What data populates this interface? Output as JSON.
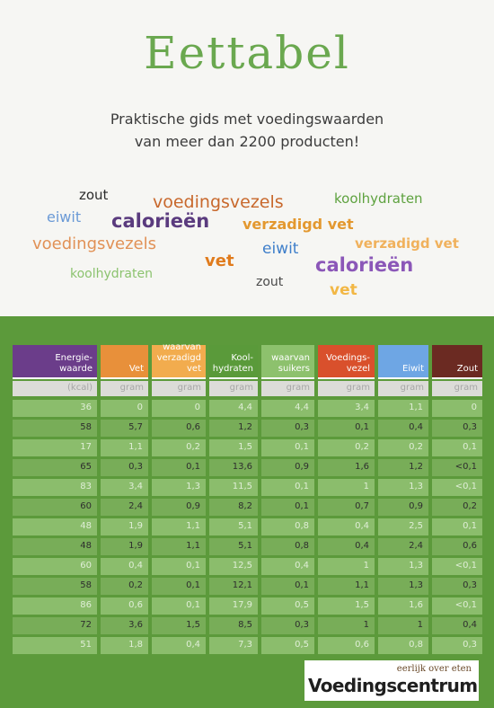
{
  "title": "Eettabel",
  "subtitle": {
    "line1": "Praktische gids met voedingswaarden",
    "line2": "van meer dan 2200 producten!"
  },
  "word_cloud": [
    {
      "text": "zout",
      "color": "#2b2b2b"
    },
    {
      "text": "voedingsvezels",
      "color": "#c8682c"
    },
    {
      "text": "koolhydraten",
      "color": "#5ea23f"
    },
    {
      "text": "eiwit",
      "color": "#6b9ad6"
    },
    {
      "text": "calorieën",
      "color": "#5a3b7e"
    },
    {
      "text": "verzadigd vet",
      "color": "#e3982f"
    },
    {
      "text": "voedingsvezels",
      "color": "#e19156"
    },
    {
      "text": "eiwit",
      "color": "#3f7fca"
    },
    {
      "text": "verzadigd vet",
      "color": "#f0b15c"
    },
    {
      "text": "vet",
      "color": "#e07b1c"
    },
    {
      "text": "calorieën",
      "color": "#8b57b8"
    },
    {
      "text": "koolhydraten",
      "color": "#8cc36f"
    },
    {
      "text": "zout",
      "color": "#4a4a4a"
    },
    {
      "text": "vet",
      "color": "#f2b744"
    }
  ],
  "table": {
    "columns": [
      {
        "label_lines": [
          "Energie-",
          "waarde"
        ],
        "unit": "(kcal)",
        "color": "#6b3d8a"
      },
      {
        "label_lines": [
          "Vet"
        ],
        "unit": "gram",
        "color": "#e8903a"
      },
      {
        "label_lines": [
          "waarvan",
          "verzadigd",
          "vet"
        ],
        "unit": "gram",
        "color": "#f2ac4e"
      },
      {
        "label_lines": [
          "Kool-",
          "hydraten"
        ],
        "unit": "gram",
        "color": "#5a9a3a"
      },
      {
        "label_lines": [
          "waarvan",
          "suikers"
        ],
        "unit": "gram",
        "color": "#8dc16d"
      },
      {
        "label_lines": [
          "Voedings-",
          "vezel"
        ],
        "unit": "gram",
        "color": "#d9502c"
      },
      {
        "label_lines": [
          "Eiwit"
        ],
        "unit": "gram",
        "color": "#6ea6e4"
      },
      {
        "label_lines": [
          "Zout"
        ],
        "unit": "gram",
        "color": "#6b2a22"
      }
    ],
    "rows": [
      [
        "36",
        "0",
        "0",
        "4,4",
        "4,4",
        "3,4",
        "1,1",
        "0"
      ],
      [
        "58",
        "5,7",
        "0,6",
        "1,2",
        "0,3",
        "0,1",
        "0,4",
        "0,3"
      ],
      [
        "17",
        "1,1",
        "0,2",
        "1,5",
        "0,1",
        "0,2",
        "0,2",
        "0,1"
      ],
      [
        "65",
        "0,3",
        "0,1",
        "13,6",
        "0,9",
        "1,6",
        "1,2",
        "<0,1"
      ],
      [
        "83",
        "3,4",
        "1,3",
        "11,5",
        "0,1",
        "1",
        "1,3",
        "<0,1"
      ],
      [
        "60",
        "2,4",
        "0,9",
        "8,2",
        "0,1",
        "0,7",
        "0,9",
        "0,2"
      ],
      [
        "48",
        "1,9",
        "1,1",
        "5,1",
        "0,8",
        "0,4",
        "2,5",
        "0,1"
      ],
      [
        "48",
        "1,9",
        "1,1",
        "5,1",
        "0,8",
        "0,4",
        "2,4",
        "0,6"
      ],
      [
        "60",
        "0,4",
        "0,1",
        "12,5",
        "0,4",
        "1",
        "1,3",
        "<0,1"
      ],
      [
        "58",
        "0,2",
        "0,1",
        "12,1",
        "0,1",
        "1,1",
        "1,3",
        "0,3"
      ],
      [
        "86",
        "0,6",
        "0,1",
        "17,9",
        "0,5",
        "1,5",
        "1,6",
        "<0,1"
      ],
      [
        "72",
        "3,6",
        "1,5",
        "8,5",
        "0,3",
        "1",
        "1",
        "0,4"
      ],
      [
        "51",
        "1,8",
        "0,4",
        "7,3",
        "0,5",
        "0,6",
        "0,8",
        "0,3"
      ]
    ]
  },
  "brand": {
    "tagline": "eerlijk over eten",
    "name": "Voedingscentrum"
  }
}
